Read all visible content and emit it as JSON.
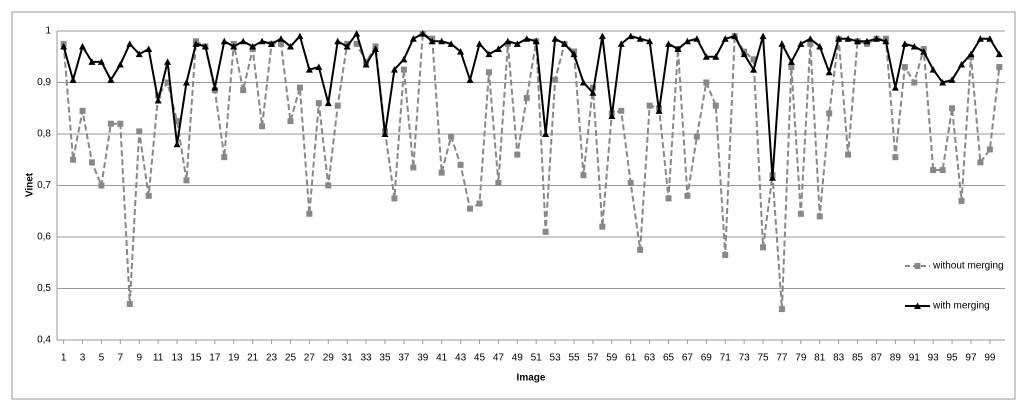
{
  "chart_data": {
    "type": "line",
    "xlabel": "Image",
    "ylabel": "Vinet",
    "x": [
      1,
      2,
      3,
      4,
      5,
      6,
      7,
      8,
      9,
      10,
      11,
      12,
      13,
      14,
      15,
      16,
      17,
      18,
      19,
      20,
      21,
      22,
      23,
      24,
      25,
      26,
      27,
      28,
      29,
      30,
      31,
      32,
      33,
      34,
      35,
      36,
      37,
      38,
      39,
      40,
      41,
      42,
      43,
      44,
      45,
      46,
      47,
      48,
      49,
      50,
      51,
      52,
      53,
      54,
      55,
      56,
      57,
      58,
      59,
      60,
      61,
      62,
      63,
      64,
      65,
      66,
      67,
      68,
      69,
      70,
      71,
      72,
      73,
      74,
      75,
      76,
      77,
      78,
      79,
      80,
      81,
      82,
      83,
      84,
      85,
      86,
      87,
      88,
      89,
      90,
      91,
      92,
      93,
      94,
      95,
      96,
      97,
      98,
      99,
      100
    ],
    "xlim": [
      0.3,
      100.6
    ],
    "xticks": [
      1,
      3,
      5,
      7,
      9,
      11,
      13,
      15,
      17,
      19,
      21,
      23,
      25,
      27,
      29,
      31,
      33,
      35,
      37,
      39,
      41,
      43,
      45,
      47,
      49,
      51,
      53,
      55,
      57,
      59,
      61,
      63,
      65,
      67,
      69,
      71,
      73,
      75,
      77,
      79,
      81,
      83,
      85,
      87,
      89,
      91,
      93,
      95,
      97,
      99
    ],
    "ylim": [
      0.4,
      1
    ],
    "yticks": [
      {
        "value": 0.4,
        "label": "0,4"
      },
      {
        "value": 0.5,
        "label": "0,5"
      },
      {
        "value": 0.6,
        "label": "0,6"
      },
      {
        "value": 0.7,
        "label": "0,7"
      },
      {
        "value": 0.8,
        "label": "0,8"
      },
      {
        "value": 0.9,
        "label": "0,9"
      },
      1
    ],
    "grid": true,
    "legend": "right",
    "series": [
      {
        "name": "without merging",
        "color": "#888888",
        "line_style": "dashed",
        "marker": "square",
        "values": [
          0.975,
          0.75,
          0.845,
          0.745,
          0.7,
          0.82,
          0.82,
          0.47,
          0.805,
          0.68,
          0.875,
          0.9,
          0.825,
          0.71,
          0.98,
          0.97,
          0.885,
          0.755,
          0.975,
          0.885,
          0.965,
          0.815,
          0.975,
          0.975,
          0.825,
          0.89,
          0.645,
          0.86,
          0.7,
          0.855,
          0.975,
          0.975,
          0.94,
          0.97,
          0.805,
          0.675,
          0.925,
          0.735,
          0.995,
          0.985,
          0.725,
          0.795,
          0.74,
          0.655,
          0.665,
          0.92,
          0.705,
          0.975,
          0.76,
          0.87,
          0.98,
          0.61,
          0.905,
          0.975,
          0.96,
          0.72,
          0.89,
          0.62,
          0.84,
          0.845,
          0.705,
          0.575,
          0.855,
          0.85,
          0.675,
          0.965,
          0.68,
          0.795,
          0.9,
          0.855,
          0.565,
          0.99,
          0.96,
          0.945,
          0.58,
          0.72,
          0.46,
          0.93,
          0.645,
          0.975,
          0.64,
          0.84,
          0.985,
          0.76,
          0.98,
          0.975,
          0.985,
          0.985,
          0.755,
          0.93,
          0.9,
          0.965,
          0.73,
          0.73,
          0.85,
          0.67,
          0.95,
          0.745,
          0.77,
          0.93
        ]
      },
      {
        "name": "with merging",
        "color": "#000000",
        "line_style": "solid",
        "marker": "triangle",
        "values": [
          0.97,
          0.905,
          0.97,
          0.94,
          0.94,
          0.905,
          0.935,
          0.975,
          0.955,
          0.965,
          0.865,
          0.94,
          0.78,
          0.9,
          0.975,
          0.97,
          0.89,
          0.98,
          0.97,
          0.98,
          0.97,
          0.98,
          0.975,
          0.985,
          0.97,
          0.99,
          0.925,
          0.93,
          0.86,
          0.98,
          0.97,
          0.995,
          0.935,
          0.965,
          0.8,
          0.925,
          0.945,
          0.985,
          0.995,
          0.98,
          0.98,
          0.975,
          0.96,
          0.905,
          0.975,
          0.955,
          0.965,
          0.98,
          0.975,
          0.985,
          0.98,
          0.8,
          0.985,
          0.975,
          0.955,
          0.9,
          0.88,
          0.99,
          0.835,
          0.975,
          0.99,
          0.985,
          0.98,
          0.845,
          0.975,
          0.965,
          0.98,
          0.985,
          0.95,
          0.95,
          0.985,
          0.99,
          0.955,
          0.925,
          0.99,
          0.715,
          0.975,
          0.94,
          0.975,
          0.985,
          0.97,
          0.92,
          0.985,
          0.985,
          0.98,
          0.98,
          0.985,
          0.98,
          0.89,
          0.975,
          0.97,
          0.96,
          0.925,
          0.9,
          0.905,
          0.935,
          0.955,
          0.985,
          0.985,
          0.955
        ]
      }
    ]
  }
}
